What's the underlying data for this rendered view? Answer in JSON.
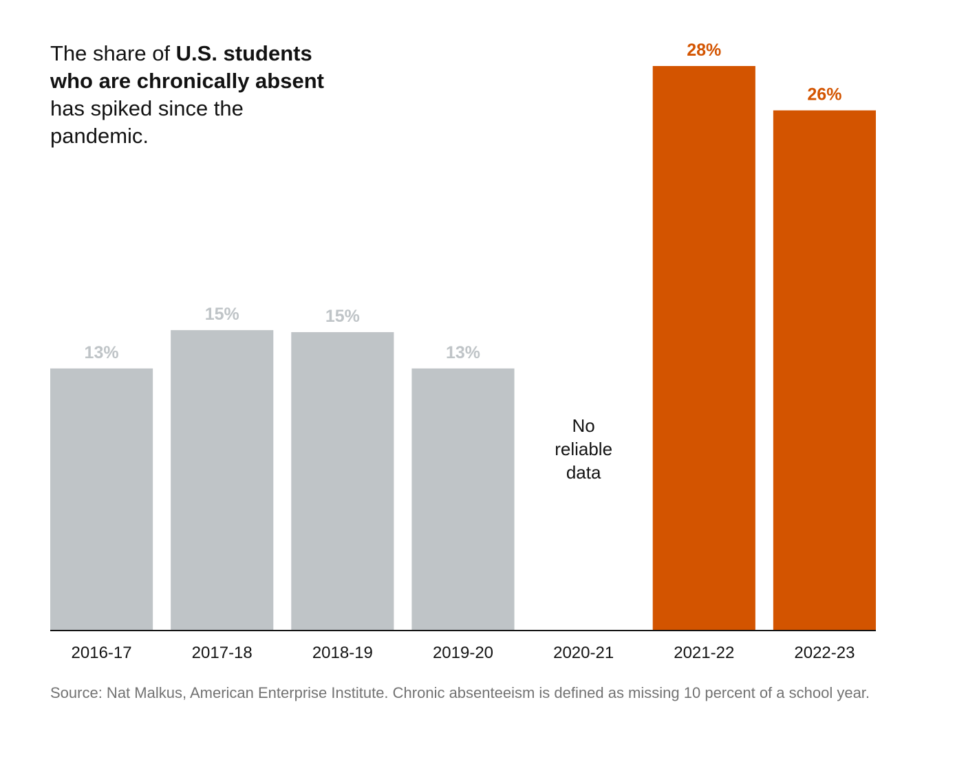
{
  "title": {
    "prefix": "The share of ",
    "bold": "U.S. students who are chronically absent",
    "suffix": " has spiked since the pandemic."
  },
  "colors": {
    "pre_pandemic": "#bfc4c7",
    "post_pandemic": "#d35400",
    "axis": "#121212"
  },
  "chart_data": {
    "type": "bar",
    "title": "The share of U.S. students who are chronically absent has spiked since the pandemic.",
    "xlabel": "",
    "ylabel": "",
    "ylim": [
      0,
      28
    ],
    "categories": [
      "2016-17",
      "2017-18",
      "2018-19",
      "2019-20",
      "2020-21",
      "2021-22",
      "2022-23"
    ],
    "values": [
      13.0,
      14.9,
      14.8,
      13.0,
      null,
      28.0,
      25.8
    ],
    "value_labels": [
      "13%",
      "15%",
      "15%",
      "13%",
      "",
      "28%",
      "26%"
    ],
    "highlight": [
      false,
      false,
      false,
      false,
      false,
      true,
      true
    ],
    "missing_note": {
      "category": "2020-21",
      "lines": [
        "No",
        "reliable",
        "data"
      ]
    }
  },
  "source": "Source: Nat Malkus, American Enterprise Institute. Chronic absenteeism is defined as missing 10 percent of a school year."
}
